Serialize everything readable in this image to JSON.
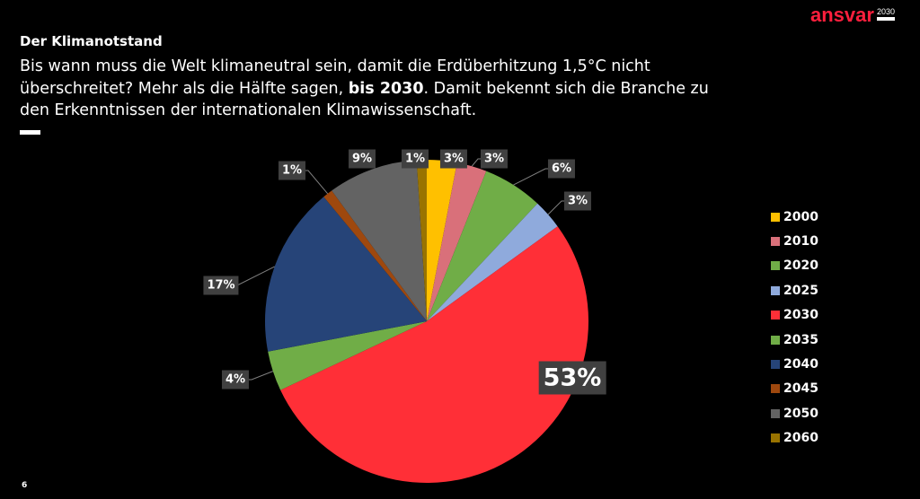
{
  "logo": {
    "word": "ansvar",
    "year": "2030"
  },
  "heading": "Der Klimanotstand",
  "body": {
    "part1": "Bis wann muss die Welt klimaneutral sein, damit die Erdüberhitzung 1,5°C nicht überschreitet? Mehr als die Hälfte sagen, ",
    "bold": "bis 2030",
    "part2": ". Damit bekennt sich die Branche zu den Erkenntnissen der internationalen Klimawissenschaft."
  },
  "page_number": "6",
  "chart_data": {
    "type": "pie",
    "title": "",
    "start": "12 o'clock, clockwise",
    "legend_position": "right",
    "categories": [
      "2000",
      "2010",
      "2020",
      "2025",
      "2030",
      "2035",
      "2040",
      "2045",
      "2050",
      "2060"
    ],
    "values": [
      3,
      3,
      6,
      3,
      53,
      4,
      17,
      1,
      9,
      1
    ],
    "labels": [
      "3%",
      "3%",
      "6%",
      "3%",
      "53%",
      "4%",
      "17%",
      "1%",
      "9%",
      "1%"
    ],
    "colors": [
      "#ffc000",
      "#d9707a",
      "#70ad47",
      "#8faadc",
      "#ff2f37",
      "#70ad47",
      "#264478",
      "#9e480e",
      "#636363",
      "#997300"
    ]
  }
}
